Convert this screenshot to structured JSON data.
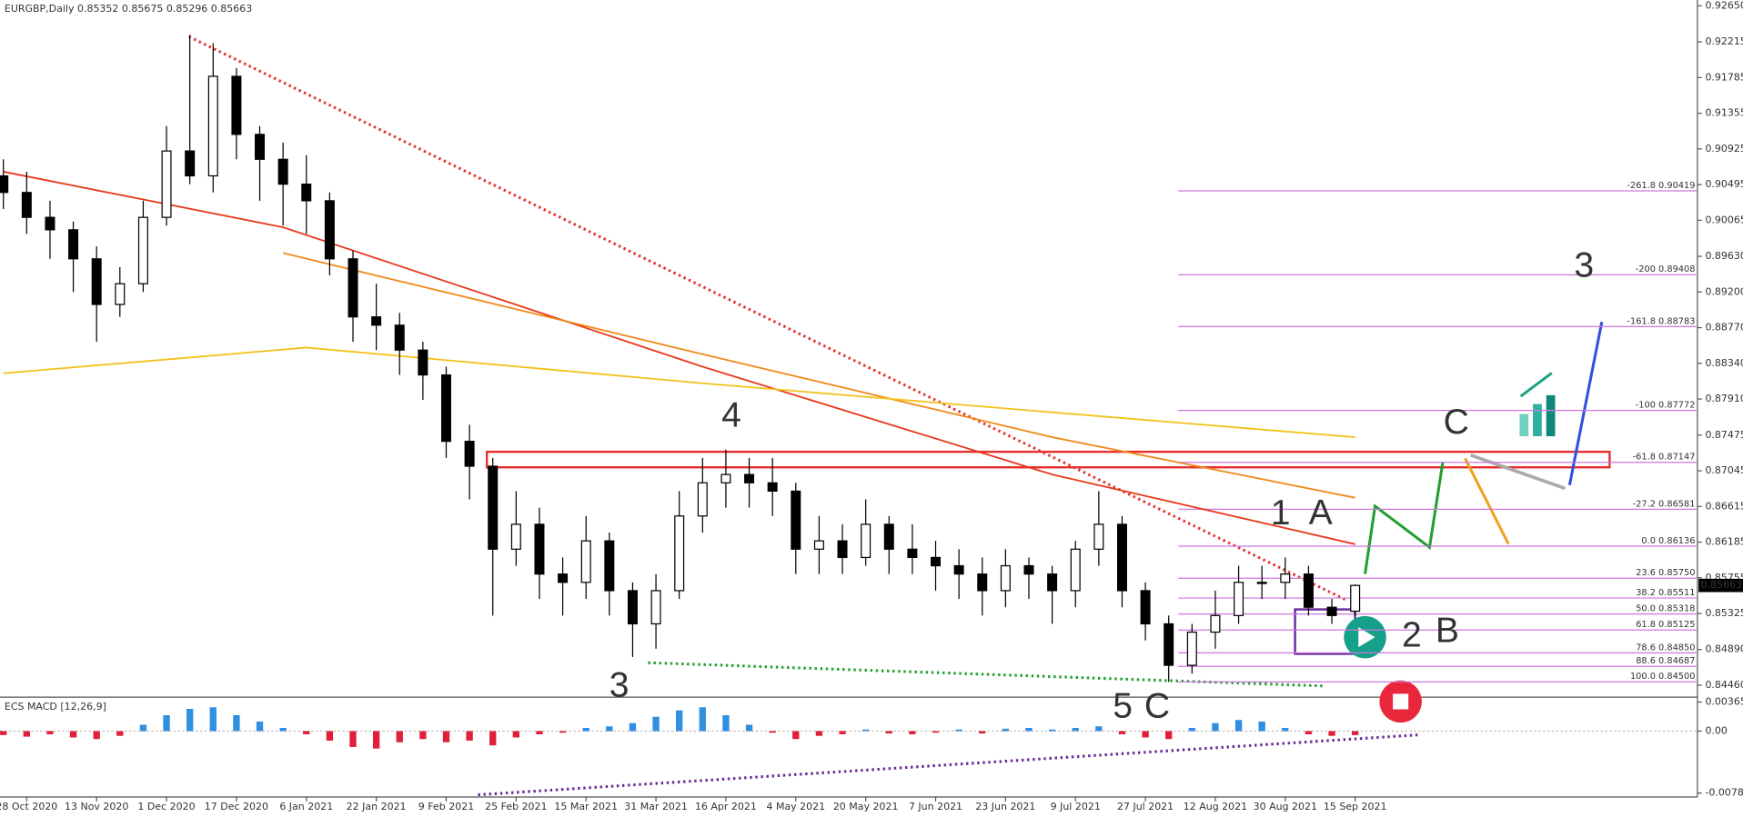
{
  "chart_data": {
    "type": "candlestick",
    "symbol": "EURGBP,Daily",
    "indicator_title": "ECS MACD [12,26,9]",
    "categories": [
      "28 Oct 2020",
      "13 Nov 2020",
      "1 Dec 2020",
      "17 Dec 2020",
      "6 Jan 2021",
      "22 Jan 2021",
      "9 Feb 2021",
      "25 Feb 2021",
      "15 Mar 2021",
      "31 Mar 2021",
      "16 Apr 2021",
      "4 May 2021",
      "20 May 2021",
      "7 Jun 2021",
      "23 Jun 2021",
      "9 Jul 2021",
      "27 Jul 2021",
      "12 Aug 2021",
      "30 Aug 2021",
      "15 Sep 2021"
    ],
    "series": [
      {
        "name": "EURGBP",
        "up_color": "#ffffff",
        "down_color": "#000000",
        "open": [
          0.906,
          0.904,
          0.901,
          0.8995,
          0.896,
          0.8905,
          0.893,
          0.901,
          0.909,
          0.906,
          0.918,
          0.911,
          0.908,
          0.905,
          0.903,
          0.896,
          0.889,
          0.888,
          0.885,
          0.882,
          0.874,
          0.871,
          0.861,
          0.864,
          0.858,
          0.857,
          0.862,
          0.856,
          0.852,
          0.856,
          0.865,
          0.869,
          0.87,
          0.869,
          0.868,
          0.861,
          0.862,
          0.86,
          0.864,
          0.861,
          0.86,
          0.859,
          0.858,
          0.856,
          0.859,
          0.858,
          0.856,
          0.861,
          0.864,
          0.856,
          0.852,
          0.847,
          0.851,
          0.853,
          0.857,
          0.857,
          0.858,
          0.854,
          0.85352
        ],
        "high": [
          0.908,
          0.9065,
          0.903,
          0.9005,
          0.8975,
          0.895,
          0.903,
          0.912,
          0.923,
          0.922,
          0.919,
          0.912,
          0.91,
          0.9085,
          0.904,
          0.897,
          0.893,
          0.8895,
          0.886,
          0.883,
          0.876,
          0.872,
          0.868,
          0.866,
          0.86,
          0.865,
          0.863,
          0.857,
          0.858,
          0.868,
          0.872,
          0.873,
          0.872,
          0.872,
          0.869,
          0.865,
          0.864,
          0.867,
          0.865,
          0.864,
          0.862,
          0.861,
          0.86,
          0.861,
          0.86,
          0.859,
          0.862,
          0.868,
          0.865,
          0.857,
          0.853,
          0.852,
          0.856,
          0.859,
          0.859,
          0.86,
          0.859,
          0.855,
          0.85675
        ],
        "low": [
          0.902,
          0.899,
          0.896,
          0.892,
          0.886,
          0.889,
          0.892,
          0.9,
          0.905,
          0.904,
          0.908,
          0.903,
          0.9,
          0.899,
          0.894,
          0.886,
          0.885,
          0.882,
          0.879,
          0.872,
          0.867,
          0.853,
          0.859,
          0.855,
          0.853,
          0.855,
          0.853,
          0.848,
          0.849,
          0.855,
          0.863,
          0.866,
          0.866,
          0.865,
          0.858,
          0.858,
          0.858,
          0.859,
          0.858,
          0.858,
          0.856,
          0.855,
          0.853,
          0.854,
          0.855,
          0.852,
          0.854,
          0.859,
          0.854,
          0.85,
          0.845,
          0.846,
          0.849,
          0.852,
          0.855,
          0.855,
          0.853,
          0.852,
          0.85296
        ],
        "close": [
          0.904,
          0.901,
          0.8995,
          0.896,
          0.8905,
          0.893,
          0.901,
          0.909,
          0.906,
          0.918,
          0.911,
          0.908,
          0.905,
          0.903,
          0.896,
          0.889,
          0.888,
          0.885,
          0.882,
          0.874,
          0.871,
          0.861,
          0.864,
          0.858,
          0.857,
          0.862,
          0.856,
          0.852,
          0.856,
          0.865,
          0.869,
          0.87,
          0.869,
          0.868,
          0.861,
          0.862,
          0.86,
          0.864,
          0.861,
          0.86,
          0.859,
          0.858,
          0.856,
          0.859,
          0.858,
          0.856,
          0.861,
          0.864,
          0.856,
          0.852,
          0.847,
          0.851,
          0.853,
          0.857,
          0.857,
          0.858,
          0.854,
          0.853,
          0.85663
        ]
      }
    ],
    "moving_averages": [
      {
        "color": "#e83a1c",
        "x": [
          0,
          12,
          30,
          45,
          58
        ],
        "values": [
          0.9065,
          0.8998,
          0.883,
          0.87,
          0.8616
        ]
      },
      {
        "color": "#f08a1c",
        "x": [
          12,
          30,
          45,
          58
        ],
        "values": [
          0.8967,
          0.8845,
          0.8745,
          0.8672
        ]
      },
      {
        "color": "#f2c21a",
        "x": [
          0,
          13,
          30,
          45,
          58
        ],
        "values": [
          0.8822,
          0.8853,
          0.881,
          0.8775,
          0.8745
        ]
      }
    ],
    "ylim": [
      0.8433,
      0.9272
    ],
    "yticks": [
      {
        "value": 0.9265,
        "label": "0.92650"
      },
      {
        "value": 0.92215,
        "label": "0.92215"
      },
      {
        "value": 0.91785,
        "label": "0.91785"
      },
      {
        "value": 0.91355,
        "label": "0.91355"
      },
      {
        "value": 0.90925,
        "label": "0.90925"
      },
      {
        "value": 0.90495,
        "label": "0.90495"
      },
      {
        "value": 0.90065,
        "label": "0.90065"
      },
      {
        "value": 0.8963,
        "label": "0.89630"
      },
      {
        "value": 0.892,
        "label": "0.89200"
      },
      {
        "value": 0.8877,
        "label": "0.88770"
      },
      {
        "value": 0.8834,
        "label": "0.88340"
      },
      {
        "value": 0.8791,
        "label": "0.87910"
      },
      {
        "value": 0.87475,
        "label": "0.87475"
      },
      {
        "value": 0.87045,
        "label": "0.87045"
      },
      {
        "value": 0.86615,
        "label": "0.86615"
      },
      {
        "value": 0.86185,
        "label": "0.86185"
      },
      {
        "value": 0.85755,
        "label": "0.85755"
      },
      {
        "value": 0.85325,
        "label": "0.85325"
      },
      {
        "value": 0.8489,
        "label": "0.84890"
      },
      {
        "value": 0.8446,
        "label": "0.84460"
      }
    ],
    "fib_color": "#cc77dd",
    "fib_levels": [
      {
        "ratio": "-261.8",
        "price": 0.90419
      },
      {
        "ratio": "-200",
        "price": 0.89408
      },
      {
        "ratio": "-161.8",
        "price": 0.88783
      },
      {
        "ratio": "-100",
        "price": 0.87772
      },
      {
        "ratio": "-61.8",
        "price": 0.87147
      },
      {
        "ratio": "-27.2",
        "price": 0.86581
      },
      {
        "ratio": "0.0",
        "price": 0.86136
      },
      {
        "ratio": "23.6",
        "price": {
          "value": 0.8575,
          "label": "0.85750"
        }
      },
      {
        "ratio": "38.2",
        "price": 0.85511
      },
      {
        "ratio": "50.0",
        "price": 0.85318
      },
      {
        "ratio": "61.8",
        "price": 0.85125
      },
      {
        "ratio": "78.6",
        "price": {
          "value": 0.8485,
          "label": "0.84850"
        }
      },
      {
        "ratio": "88.6",
        "price": 0.84687
      },
      {
        "ratio": "100.0",
        "price": {
          "value": 0.845,
          "label": "0.84500"
        }
      }
    ],
    "macd": {
      "pos_color": "#2f8fe0",
      "neg_color": "#e0203a",
      "values": [
        -0.0005,
        -0.0007,
        -0.0004,
        -0.0008,
        -0.001,
        -0.0006,
        0.0008,
        0.002,
        0.0028,
        0.003,
        0.002,
        0.0012,
        0.0004,
        -0.0004,
        -0.0012,
        -0.002,
        -0.0022,
        -0.0014,
        -0.001,
        -0.0014,
        -0.0012,
        -0.0018,
        -0.0008,
        -0.0004,
        -0.0002,
        0.0004,
        0.0006,
        0.001,
        0.0018,
        0.0026,
        0.003,
        0.002,
        0.0008,
        -0.0002,
        -0.001,
        -0.0006,
        -0.0004,
        0.0002,
        -0.0003,
        -0.0004,
        -0.0002,
        0.0002,
        -0.0003,
        0.0003,
        0.0004,
        0.0002,
        0.0004,
        0.0006,
        -0.0004,
        -0.0008,
        -0.001,
        0.0004,
        0.001,
        0.0014,
        0.0012,
        0.0004,
        -0.0004,
        -0.0006,
        -0.0005
      ],
      "ylim": [
        -0.0083,
        0.004
      ],
      "yticks": [
        0.0036522,
        {
          "value": 0,
          "label": "0.00"
        },
        -0.0078025
      ]
    },
    "annotations": [
      {
        "label": "4",
        "color": "#ee44aa"
      },
      {
        "label": "3",
        "color": "#ee44aa"
      },
      {
        "label": "5",
        "color": "#ee44aa"
      },
      {
        "label": "C",
        "color": "#5a2a8a"
      },
      {
        "label": "1",
        "color": "#5a2a8a"
      },
      {
        "label": "A",
        "color": "#a0a0a0"
      },
      {
        "label": "2",
        "color": "#5a2a8a"
      },
      {
        "label": "B",
        "color": "#a0a0a0"
      },
      {
        "label": "C",
        "color": "#a0a0a0"
      },
      {
        "label": "3",
        "color": "#5a2a8a"
      }
    ]
  }
}
